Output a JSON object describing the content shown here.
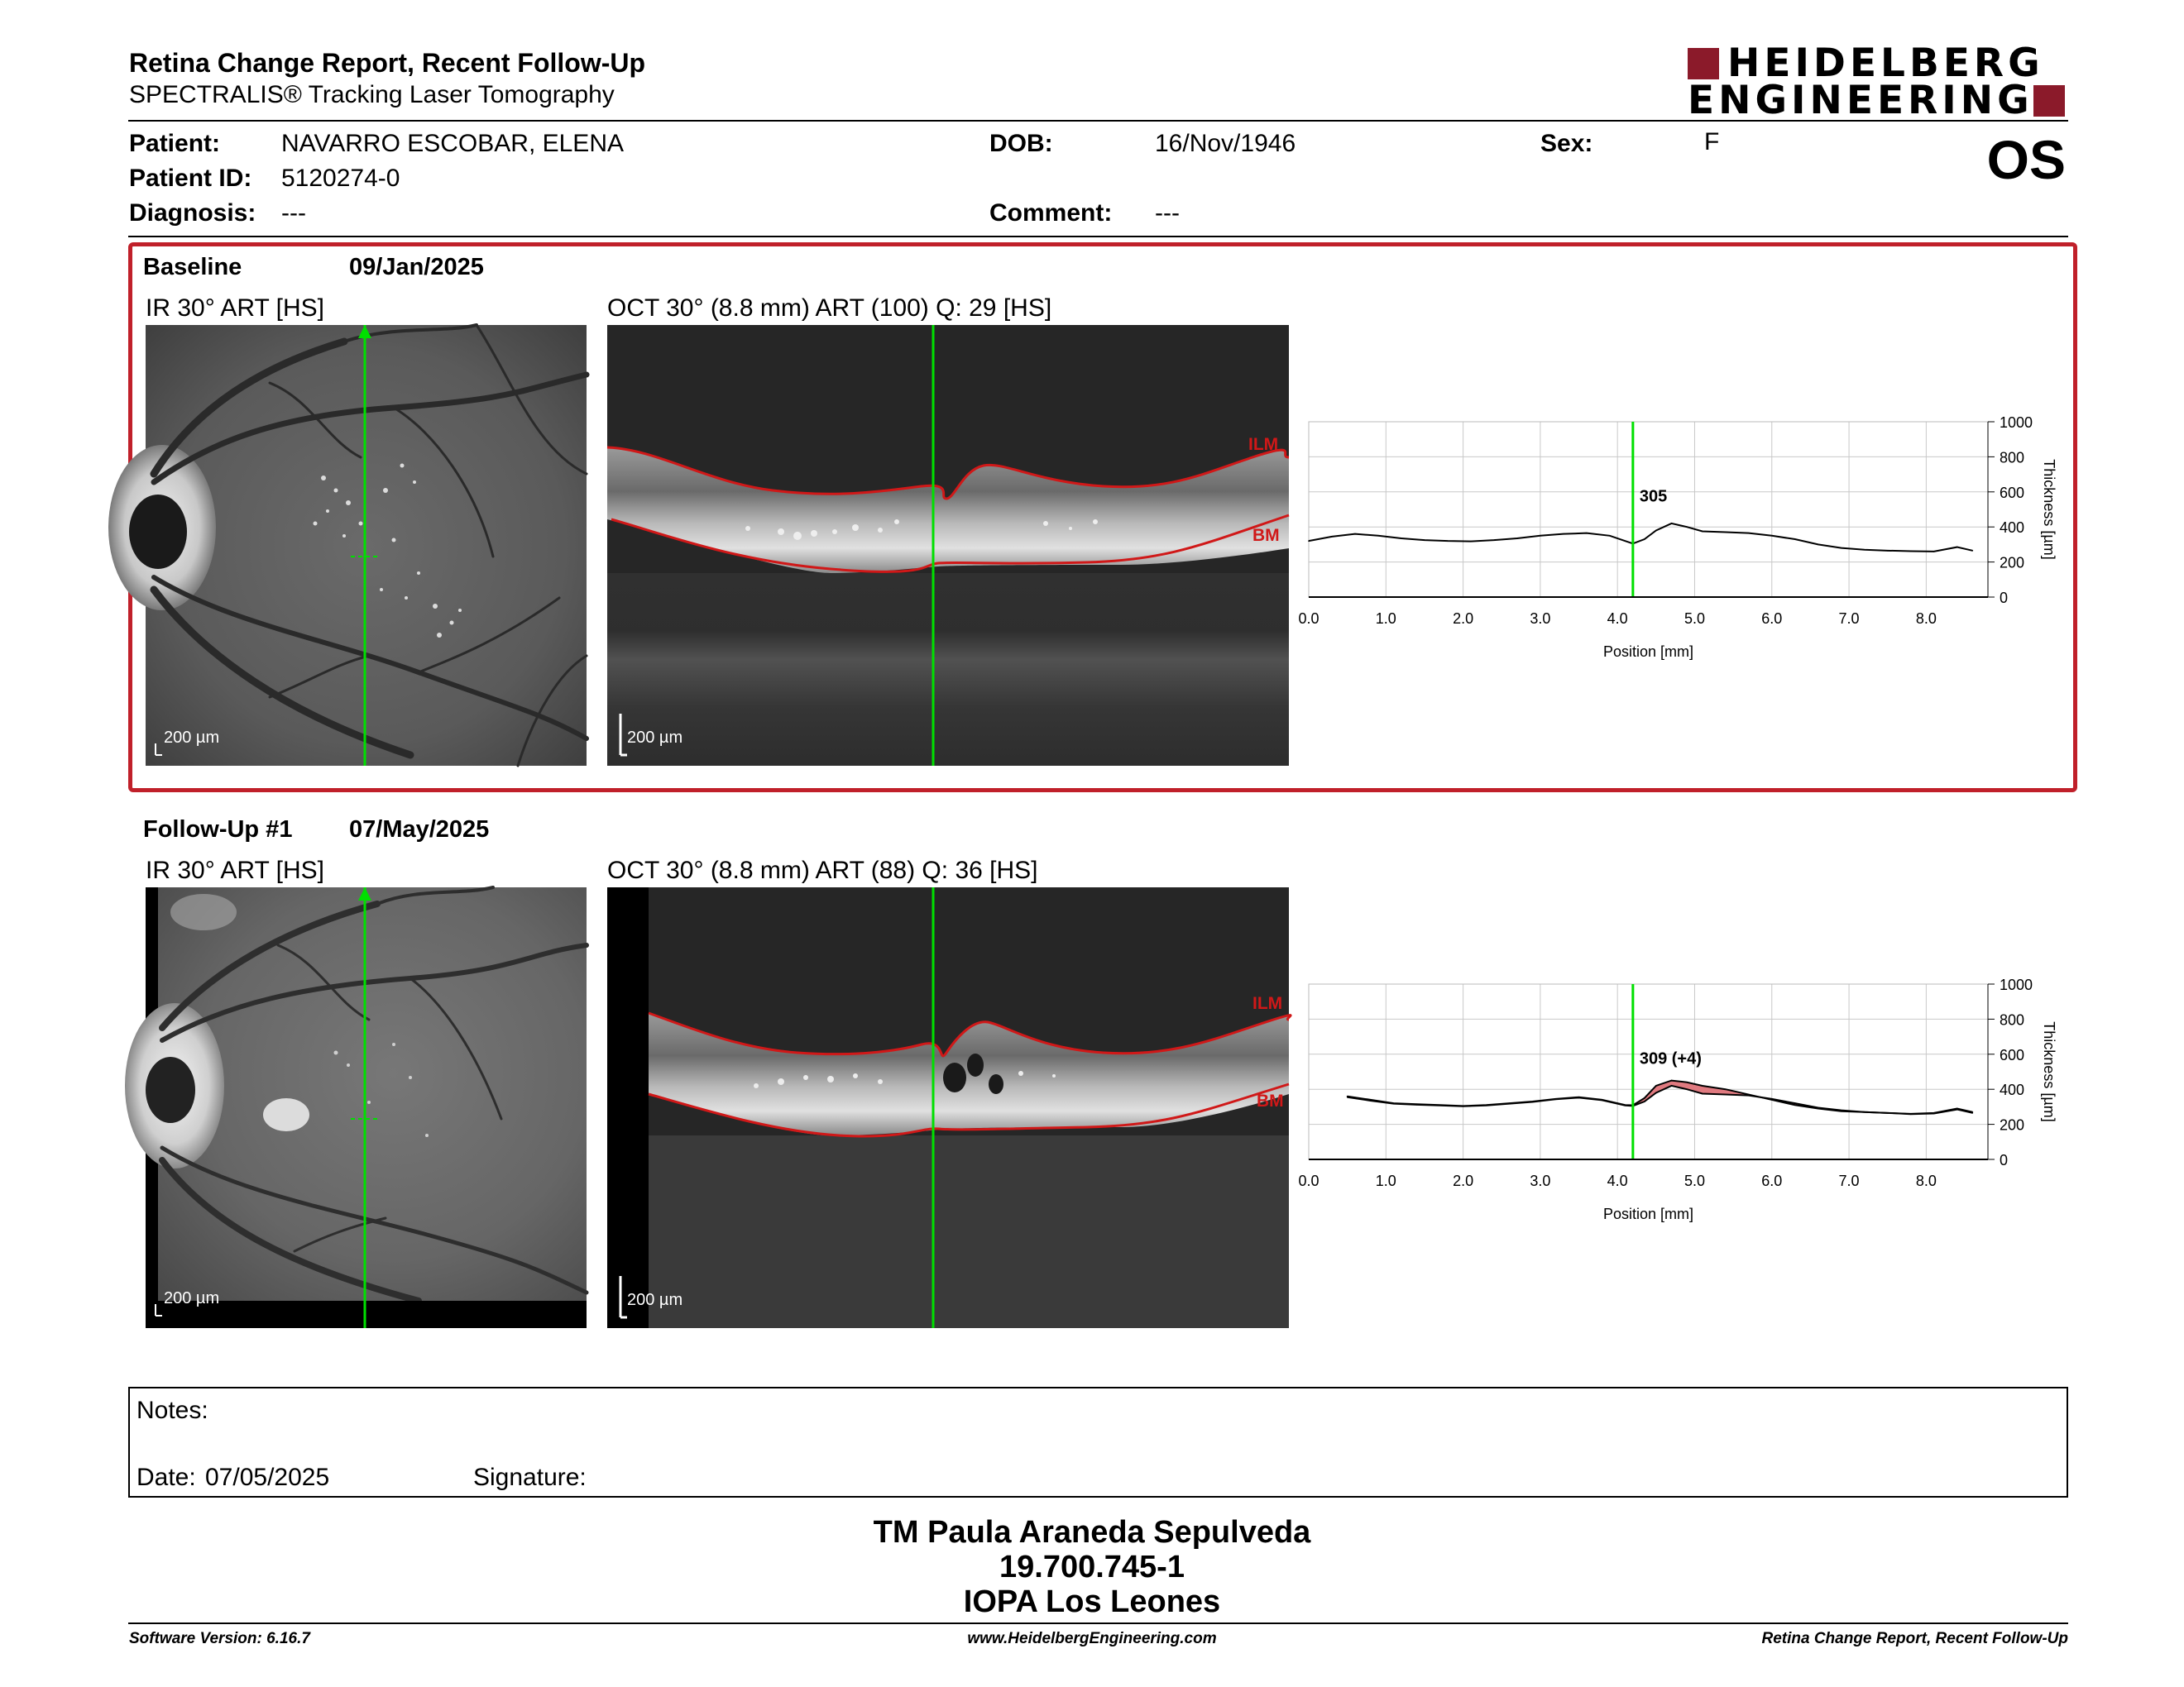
{
  "header": {
    "title": "Retina Change Report, Recent Follow-Up",
    "subtitle": "SPECTRALIS® Tracking Laser Tomography",
    "logo_line1": "HEIDELBERG",
    "logo_line2": "ENGINEERING",
    "eye": "OS"
  },
  "patient": {
    "name_label": "Patient:",
    "name": "NAVARRO ESCOBAR, ELENA",
    "id_label": "Patient ID:",
    "id": "5120274-0",
    "diagnosis_label": "Diagnosis:",
    "diagnosis": "---",
    "dob_label": "DOB:",
    "dob": "16/Nov/1946",
    "comment_label": "Comment:",
    "comment": "---",
    "sex_label": "Sex:",
    "sex": "F"
  },
  "baseline": {
    "label": "Baseline",
    "date": "09/Jan/2025",
    "ir_caption": "IR 30° ART [HS]",
    "oct_caption": "OCT 30° (8.8 mm) ART (100) Q: 29 [HS]",
    "scale_ir": "200 µm",
    "scale_oct": "200 µm",
    "ilm": "ILM",
    "bm": "BM",
    "marker_label": "305"
  },
  "followup": {
    "label": "Follow-Up #1",
    "date": "07/May/2025",
    "ir_caption": "IR 30° ART [HS]",
    "oct_caption": "OCT 30° (8.8 mm) ART (88) Q: 36 [HS]",
    "scale_ir": "200 µm",
    "scale_oct": "200 µm",
    "ilm": "ILM",
    "bm": "BM",
    "marker_label": "309 (+4)"
  },
  "chart_data": [
    {
      "type": "line",
      "xlabel": "Position [mm]",
      "ylabel": "Thickness [µm]",
      "xlim": [
        0,
        8.8
      ],
      "ylim": [
        0,
        1000
      ],
      "x_ticks": [
        "0.0",
        "1.0",
        "2.0",
        "3.0",
        "4.0",
        "5.0",
        "6.0",
        "7.0",
        "8.0"
      ],
      "y_ticks": [
        "0",
        "200",
        "400",
        "600",
        "800",
        "1000"
      ],
      "marker_x": 4.2,
      "marker_label": "305",
      "series": [
        {
          "x": [
            0.0,
            0.3,
            0.6,
            0.9,
            1.2,
            1.5,
            1.8,
            2.1,
            2.4,
            2.7,
            3.0,
            3.3,
            3.6,
            3.9,
            4.1,
            4.2,
            4.35,
            4.5,
            4.7,
            4.9,
            5.1,
            5.4,
            5.7,
            6.0,
            6.3,
            6.6,
            6.9,
            7.2,
            7.5,
            7.8,
            8.1,
            8.4,
            8.6
          ],
          "y": [
            320,
            345,
            360,
            350,
            335,
            325,
            320,
            318,
            325,
            335,
            350,
            360,
            365,
            350,
            320,
            305,
            330,
            380,
            420,
            400,
            375,
            370,
            365,
            350,
            330,
            300,
            280,
            270,
            265,
            262,
            260,
            285,
            265
          ]
        }
      ]
    },
    {
      "type": "line",
      "xlabel": "Position [mm]",
      "ylabel": "Thickness [µm]",
      "xlim": [
        0,
        8.8
      ],
      "ylim": [
        0,
        1000
      ],
      "x_ticks": [
        "0.0",
        "1.0",
        "2.0",
        "3.0",
        "4.0",
        "5.0",
        "6.0",
        "7.0",
        "8.0"
      ],
      "y_ticks": [
        "0",
        "200",
        "400",
        "600",
        "800",
        "1000"
      ],
      "marker_x": 4.2,
      "marker_label": "309 (+4)",
      "series": [
        {
          "x": [
            0.5,
            0.8,
            1.1,
            1.4,
            1.7,
            2.0,
            2.3,
            2.6,
            2.9,
            3.2,
            3.5,
            3.8,
            4.1,
            4.2,
            4.35,
            4.5,
            4.7,
            4.9,
            5.1,
            5.4,
            5.7,
            6.0,
            6.3,
            6.6,
            6.9,
            7.2,
            7.5,
            7.8,
            8.1,
            8.4,
            8.6
          ],
          "y": [
            360,
            340,
            320,
            315,
            310,
            305,
            310,
            320,
            330,
            345,
            355,
            340,
            310,
            309,
            350,
            420,
            450,
            440,
            420,
            400,
            370,
            340,
            310,
            290,
            275,
            270,
            265,
            260,
            265,
            290,
            270
          ]
        },
        {
          "x": [
            0.5,
            0.8,
            1.1,
            1.4,
            1.7,
            2.0,
            2.3,
            2.6,
            2.9,
            3.2,
            3.5,
            3.8,
            4.1,
            4.2,
            4.35,
            4.5,
            4.7,
            4.9,
            5.1,
            5.4,
            5.7,
            6.0,
            6.3,
            6.6,
            6.9,
            7.2,
            7.5,
            7.8,
            8.1,
            8.4,
            8.6
          ],
          "y": [
            355,
            335,
            318,
            312,
            308,
            303,
            308,
            318,
            328,
            343,
            352,
            338,
            308,
            305,
            330,
            380,
            420,
            400,
            375,
            370,
            365,
            345,
            320,
            295,
            280,
            270,
            265,
            258,
            262,
            285,
            265
          ]
        }
      ]
    }
  ],
  "notes": {
    "notes_label": "Notes:",
    "date_label": "Date:",
    "date_value": "07/05/2025",
    "signature_label": "Signature:"
  },
  "signature_block": {
    "line1": "TM Paula Araneda Sepulveda",
    "line2": "19.700.745-1",
    "line3": "IOPA Los Leones"
  },
  "footer": {
    "software": "Software Version: 6.16.7",
    "website": "www.HeidelbergEngineering.com",
    "report": "Retina Change Report, Recent Follow-Up"
  },
  "colors": {
    "accent_red": "#c0202a",
    "logo_red": "#8b1a2a",
    "scan_green": "#00e000",
    "delta_fill": "#e07a80"
  }
}
